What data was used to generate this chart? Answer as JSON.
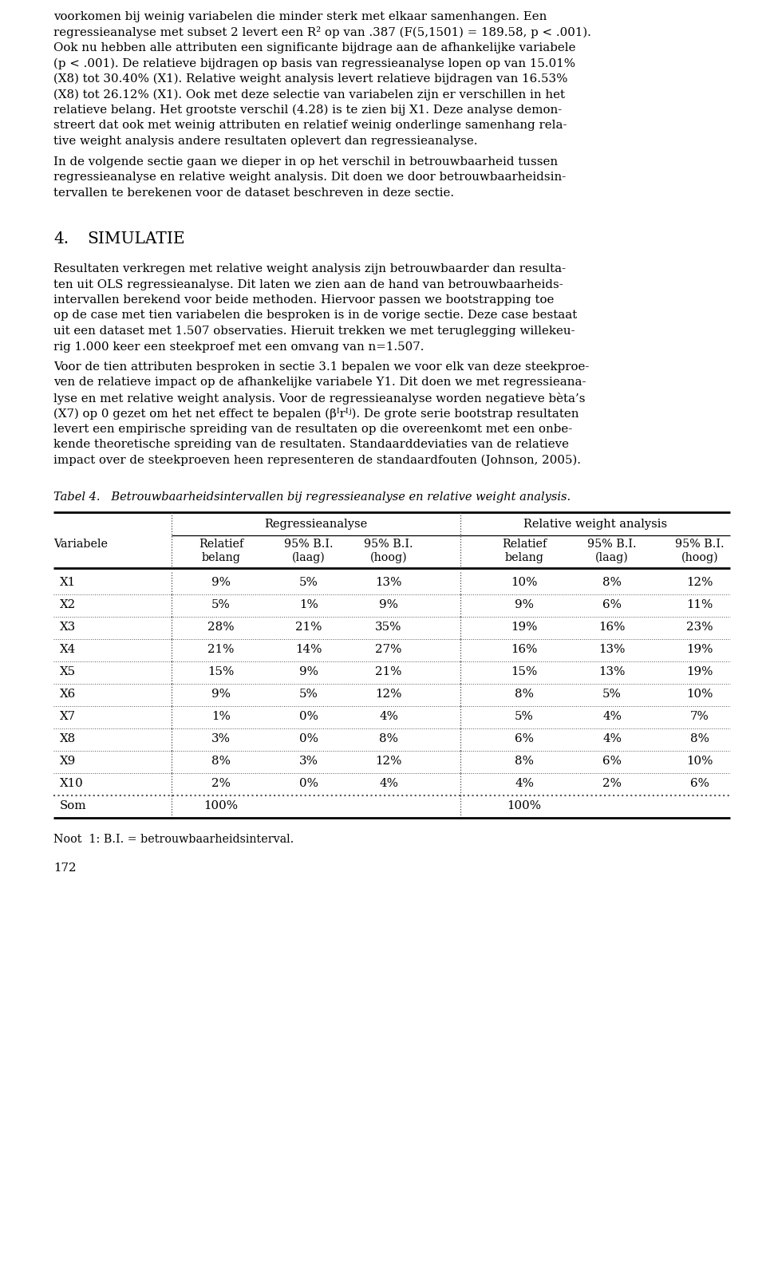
{
  "para1_lines": [
    "voorkomen bij weinig variabelen die minder sterk met elkaar samenhangen. Een",
    "regressieanalyse met subset 2 levert een R² op van .387 (F(5,1501) = 189.58, p < .001).",
    "Ook nu hebben alle attributen een significante bijdrage aan de afhankelijke variabele",
    "(p < .001). De relatieve bijdragen op basis van regressieanalyse lopen op van 15.01%",
    "(X8) tot 30.40% (X1). Relative weight analysis levert relatieve bijdragen van 16.53%",
    "(X8) tot 26.12% (X1). Ook met deze selectie van variabelen zijn er verschillen in het",
    "relatieve belang. Het grootste verschil (4.28) is te zien bij X1. Deze analyse demon-",
    "streert dat ook met weinig attributen en relatief weinig onderlinge samenhang rela-",
    "tive weight analysis andere resultaten oplevert dan regressieanalyse."
  ],
  "para2_lines": [
    "In de volgende sectie gaan we dieper in op het verschil in betrouwbaarheid tussen",
    "regressieanalyse en relative weight analysis. Dit doen we door betrouwbaarheidsin-",
    "tervallen te berekenen voor de dataset beschreven in deze sectie."
  ],
  "section_num": "4.",
  "section_title": "SIMULATIE",
  "para3_lines": [
    "Resultaten verkregen met relative weight analysis zijn betrouwbaarder dan resulta-",
    "ten uit OLS regressieanalyse. Dit laten we zien aan de hand van betrouwbaarheids-",
    "intervallen berekend voor beide methoden. Hiervoor passen we bootstrapping toe",
    "op de case met tien variabelen die besproken is in de vorige sectie. Deze case bestaat",
    "uit een dataset met 1.507 observaties. Hieruit trekken we met teruglegging willekeu-",
    "rig 1.000 keer een steekproef met een omvang van n=1.507."
  ],
  "para4_lines": [
    "Voor de tien attributen besproken in sectie 3.1 bepalen we voor elk van deze steekproe-",
    "ven de relatieve impact op de afhankelijke variabele Y1. Dit doen we met regressieana-",
    "lyse en met relative weight analysis. Voor de regressieanalyse worden negatieve bèta’s",
    "(X7) op 0 gezet om het net effect te bepalen (βᴵrᴵʲ). De grote serie bootstrap resultaten",
    "levert een empirische spreiding van de resultaten op die overeenkomt met een onbe-",
    "kende theoretische spreiding van de resultaten. Standaarddeviaties van de relatieve",
    "impact over de steekproeven heen representeren de standaardfouten (Johnson, 2005)."
  ],
  "table_caption": "Tabel 4.   Betrouwbaarheidsintervallen bij regressieanalyse en relative weight analysis.",
  "group1_label": "Regressieanalyse",
  "group2_label": "Relative weight analysis",
  "col_var": "Variabele",
  "col_headers": [
    "Relatief\nbelang",
    "95% B.I.\n(laag)",
    "95% B.I.\n(hoog)",
    "Relatief\nbelang",
    "95% B.I.\n(laag)",
    "95% B.I.\n(hoog)"
  ],
  "table_rows": [
    {
      "var": "X1",
      "r1": "9%",
      "r2": "5%",
      "r3": "13%",
      "w1": "10%",
      "w2": "8%",
      "w3": "12%"
    },
    {
      "var": "X2",
      "r1": "5%",
      "r2": "1%",
      "r3": "9%",
      "w1": "9%",
      "w2": "6%",
      "w3": "11%"
    },
    {
      "var": "X3",
      "r1": "28%",
      "r2": "21%",
      "r3": "35%",
      "w1": "19%",
      "w2": "16%",
      "w3": "23%"
    },
    {
      "var": "X4",
      "r1": "21%",
      "r2": "14%",
      "r3": "27%",
      "w1": "16%",
      "w2": "13%",
      "w3": "19%"
    },
    {
      "var": "X5",
      "r1": "15%",
      "r2": "9%",
      "r3": "21%",
      "w1": "15%",
      "w2": "13%",
      "w3": "19%"
    },
    {
      "var": "X6",
      "r1": "9%",
      "r2": "5%",
      "r3": "12%",
      "w1": "8%",
      "w2": "5%",
      "w3": "10%"
    },
    {
      "var": "X7",
      "r1": "1%",
      "r2": "0%",
      "r3": "4%",
      "w1": "5%",
      "w2": "4%",
      "w3": "7%"
    },
    {
      "var": "X8",
      "r1": "3%",
      "r2": "0%",
      "r3": "8%",
      "w1": "6%",
      "w2": "4%",
      "w3": "8%"
    },
    {
      "var": "X9",
      "r1": "8%",
      "r2": "3%",
      "r3": "12%",
      "w1": "8%",
      "w2": "6%",
      "w3": "10%"
    },
    {
      "var": "X10",
      "r1": "2%",
      "r2": "0%",
      "r3": "4%",
      "w1": "4%",
      "w2": "2%",
      "w3": "6%"
    },
    {
      "var": "Som",
      "r1": "100%",
      "r2": "",
      "r3": "",
      "w1": "100%",
      "w2": "",
      "w3": ""
    }
  ],
  "footnote": "Noot  1: B.I. = betrouwbaarheidsinterval.",
  "page_number": "172",
  "bg_color": "#ffffff",
  "text_color": "#000000"
}
